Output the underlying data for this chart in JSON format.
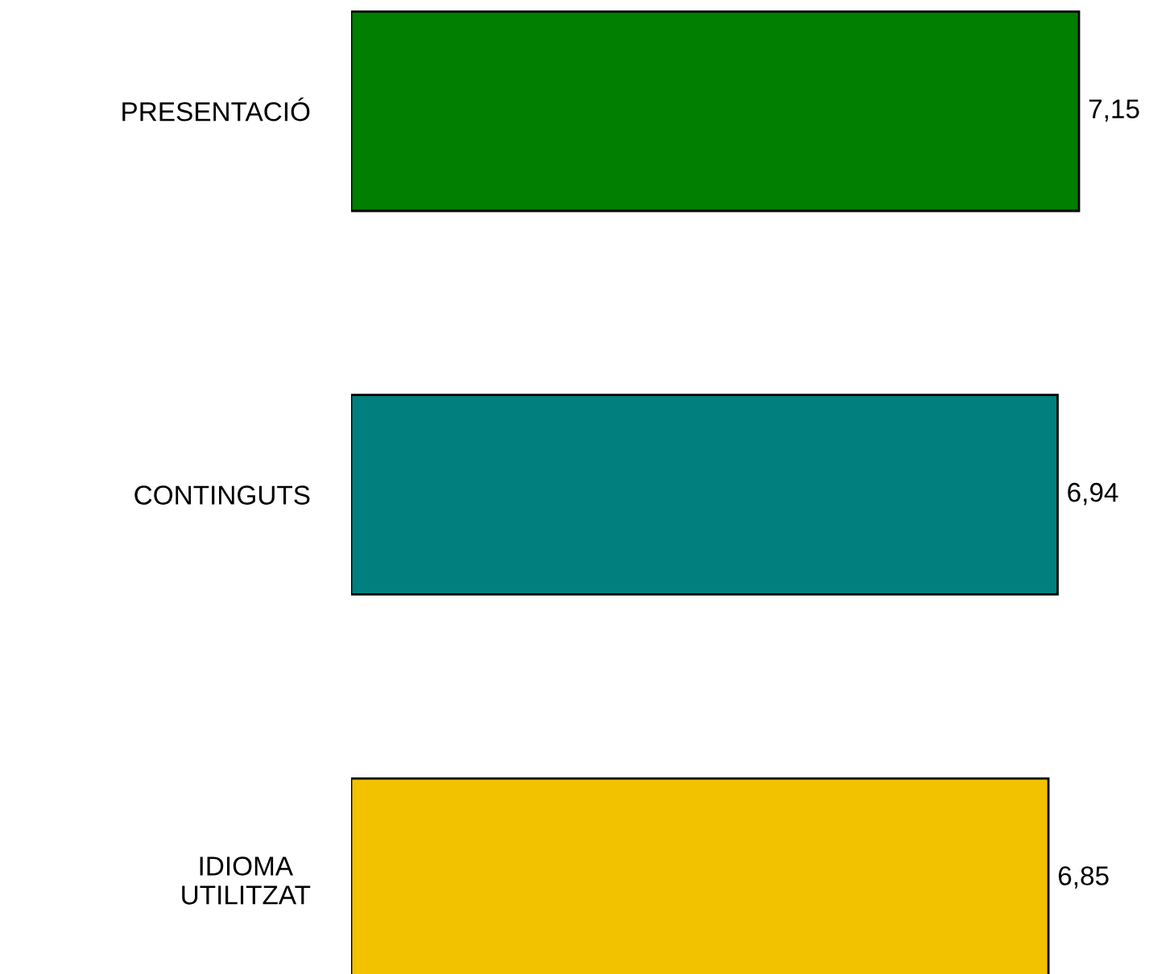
{
  "chart_data": {
    "type": "bar",
    "orientation": "horizontal",
    "categories": [
      "PRESENTACIÓ",
      "CONTINGUTS",
      "IDIOMA\nUTILITZAT"
    ],
    "values": [
      7.15,
      6.94,
      6.85
    ],
    "colors": [
      "#007f00",
      "#007f7f",
      "#f2c200"
    ],
    "value_labels": [
      "7,15",
      "6,94",
      "6,85"
    ],
    "tick_labels": "y",
    "grid": false,
    "legend": false
  }
}
